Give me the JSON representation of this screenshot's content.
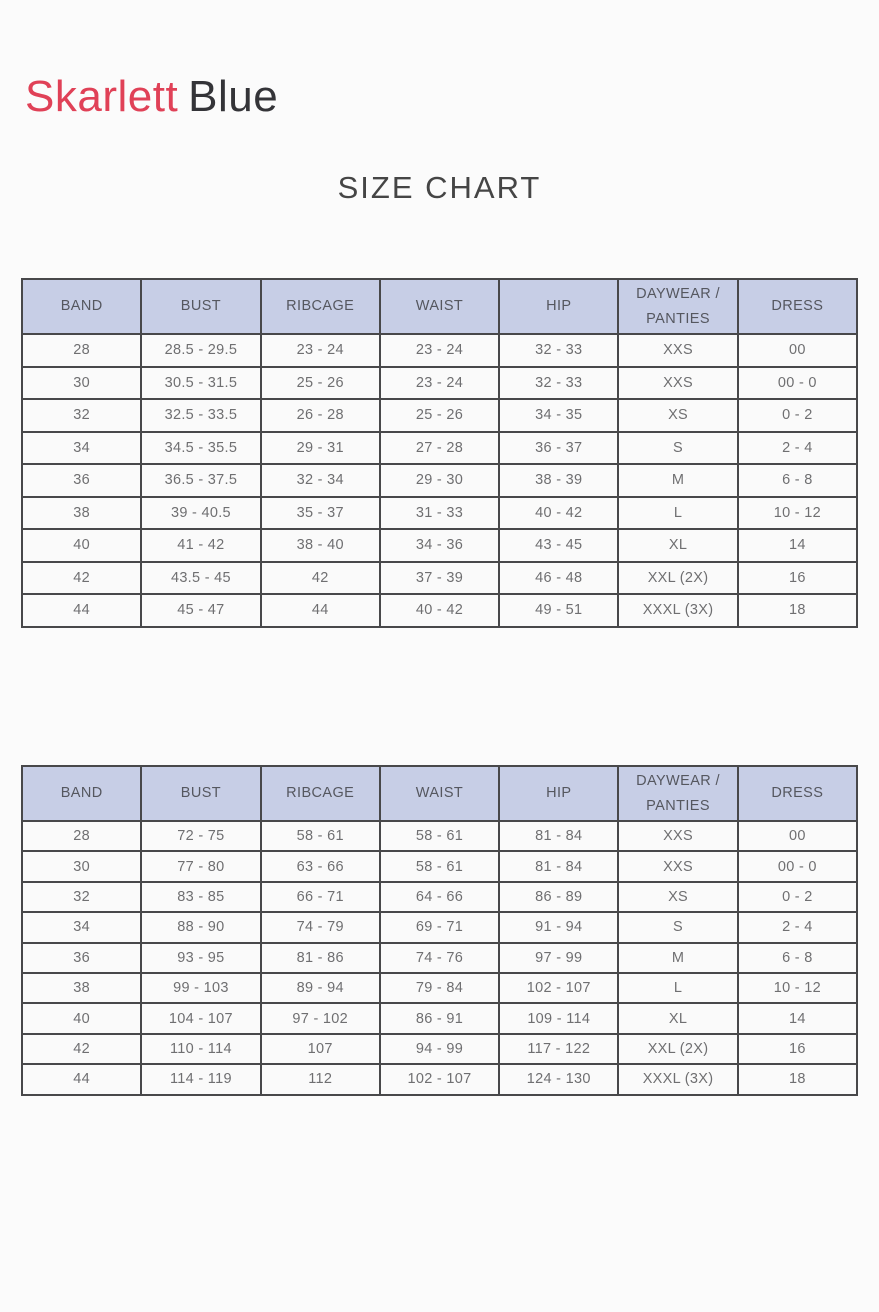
{
  "logo": {
    "part1": "Skarlett",
    "part2": "Blue"
  },
  "title": "SIZE CHART",
  "colors": {
    "logo_red": "#e04157",
    "logo_dark": "#343438",
    "header_bg": "#c7cee6",
    "border": "#48484a",
    "title_text": "#454545",
    "cell_text": "#6f6f71",
    "page_bg": "#fbfbfb"
  },
  "columns": [
    "BAND",
    "BUST",
    "RIBCAGE",
    "WAIST",
    "HIP",
    "DAYWEAR / PANTIES",
    "DRESS"
  ],
  "tables": [
    {
      "name": "size-chart-inches",
      "rows": [
        [
          "28",
          "28.5 - 29.5",
          "23 - 24",
          "23 - 24",
          "32 - 33",
          "XXS",
          "00"
        ],
        [
          "30",
          "30.5 - 31.5",
          "25 - 26",
          "23 - 24",
          "32 - 33",
          "XXS",
          "00 - 0"
        ],
        [
          "32",
          "32.5 - 33.5",
          "26 - 28",
          "25 - 26",
          "34 - 35",
          "XS",
          "0 - 2"
        ],
        [
          "34",
          "34.5 - 35.5",
          "29 - 31",
          "27 - 28",
          "36 - 37",
          "S",
          "2 - 4"
        ],
        [
          "36",
          "36.5 - 37.5",
          "32 - 34",
          "29 - 30",
          "38 - 39",
          "M",
          "6 - 8"
        ],
        [
          "38",
          "39 - 40.5",
          "35 - 37",
          "31 - 33",
          "40 - 42",
          "L",
          "10 - 12"
        ],
        [
          "40",
          "41 - 42",
          "38 - 40",
          "34 - 36",
          "43 - 45",
          "XL",
          "14"
        ],
        [
          "42",
          "43.5 - 45",
          "42",
          "37 - 39",
          "46 - 48",
          "XXL (2X)",
          "16"
        ],
        [
          "44",
          "45 - 47",
          "44",
          "40 - 42",
          "49 - 51",
          "XXXL (3X)",
          "18"
        ]
      ]
    },
    {
      "name": "size-chart-centimeters",
      "rows": [
        [
          "28",
          "72 - 75",
          "58 - 61",
          "58 - 61",
          "81 - 84",
          "XXS",
          "00"
        ],
        [
          "30",
          "77 - 80",
          "63 - 66",
          "58 - 61",
          "81 - 84",
          "XXS",
          "00 - 0"
        ],
        [
          "32",
          "83 - 85",
          "66 - 71",
          "64 - 66",
          "86 - 89",
          "XS",
          "0 - 2"
        ],
        [
          "34",
          "88 - 90",
          "74 - 79",
          "69 - 71",
          "91 - 94",
          "S",
          "2 - 4"
        ],
        [
          "36",
          "93 - 95",
          "81 - 86",
          "74 - 76",
          "97 - 99",
          "M",
          "6 - 8"
        ],
        [
          "38",
          "99 - 103",
          "89 - 94",
          "79 - 84",
          "102 - 107",
          "L",
          "10 - 12"
        ],
        [
          "40",
          "104 - 107",
          "97 - 102",
          "86 - 91",
          "109 - 114",
          "XL",
          "14"
        ],
        [
          "42",
          "110 - 114",
          "107",
          "94 - 99",
          "117 - 122",
          "XXL (2X)",
          "16"
        ],
        [
          "44",
          "114 - 119",
          "112",
          "102 - 107",
          "124 - 130",
          "XXXL (3X)",
          "18"
        ]
      ]
    }
  ]
}
